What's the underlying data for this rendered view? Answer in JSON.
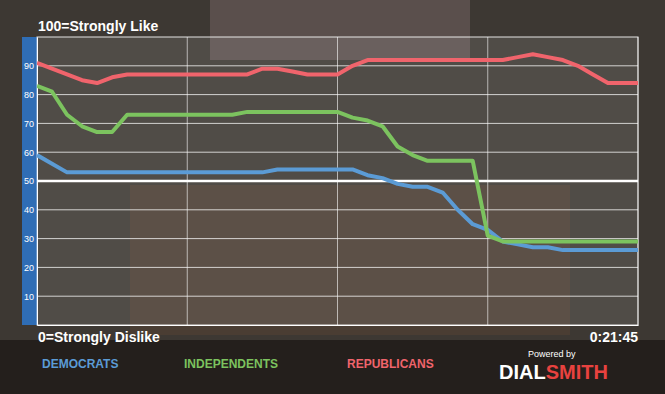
{
  "chart_data": {
    "type": "line",
    "y_top_label": "100=Strongly Like",
    "y_bottom_label": "0=Strongly Dislike",
    "timer": "0:21:45",
    "powered_by": "Powered by",
    "brand": [
      "DIAL",
      "SMITH"
    ],
    "x": [
      0,
      2.5,
      5,
      7.5,
      10,
      12.5,
      15,
      17.5,
      20,
      22.5,
      25,
      27.5,
      30,
      32.5,
      35,
      37.5,
      40,
      42.5,
      45,
      47.5,
      50,
      52.5,
      55,
      57.5,
      60,
      62.5,
      65,
      67.5,
      70,
      72.5,
      75,
      77.5,
      80,
      82.5,
      85,
      87.5,
      90,
      92.5,
      95,
      97.5,
      100
    ],
    "xlim": [
      0,
      100
    ],
    "xticks": [
      0,
      25,
      50,
      75,
      100
    ],
    "ylim": [
      0,
      100
    ],
    "yticks": [
      10,
      20,
      30,
      40,
      50,
      60,
      70,
      80,
      90
    ],
    "reference_line": 50,
    "grid": true,
    "legend": "bottom",
    "tick_labels": "y",
    "series": [
      {
        "name": "DEMOCRATS",
        "color": "#5b9bd5",
        "values": [
          59,
          56,
          53,
          53,
          53,
          53,
          53,
          53,
          53,
          53,
          53,
          53,
          53,
          53,
          53,
          53,
          54,
          54,
          54,
          54,
          54,
          54,
          52,
          51,
          49,
          48,
          48,
          46,
          40,
          35,
          33,
          29,
          28,
          27,
          27,
          26,
          26,
          26,
          26,
          26,
          26
        ]
      },
      {
        "name": "INDEPENDENTS",
        "color": "#7cc35f",
        "values": [
          83,
          81,
          73,
          69,
          67,
          67,
          73,
          73,
          73,
          73,
          73,
          73,
          73,
          73,
          74,
          74,
          74,
          74,
          74,
          74,
          74,
          72,
          71,
          69,
          62,
          59,
          57,
          57,
          57,
          57,
          31,
          29,
          29,
          29,
          29,
          29,
          29,
          29,
          29,
          29,
          29
        ]
      },
      {
        "name": "REPUBLICANS",
        "color": "#f0646c",
        "values": [
          91,
          89,
          87,
          85,
          84,
          86,
          87,
          87,
          87,
          87,
          87,
          87,
          87,
          87,
          87,
          89,
          89,
          88,
          87,
          87,
          87,
          90,
          92,
          92,
          92,
          92,
          92,
          92,
          92,
          92,
          92,
          92,
          93,
          94,
          93,
          92,
          90,
          87,
          84,
          84,
          84
        ]
      }
    ]
  }
}
